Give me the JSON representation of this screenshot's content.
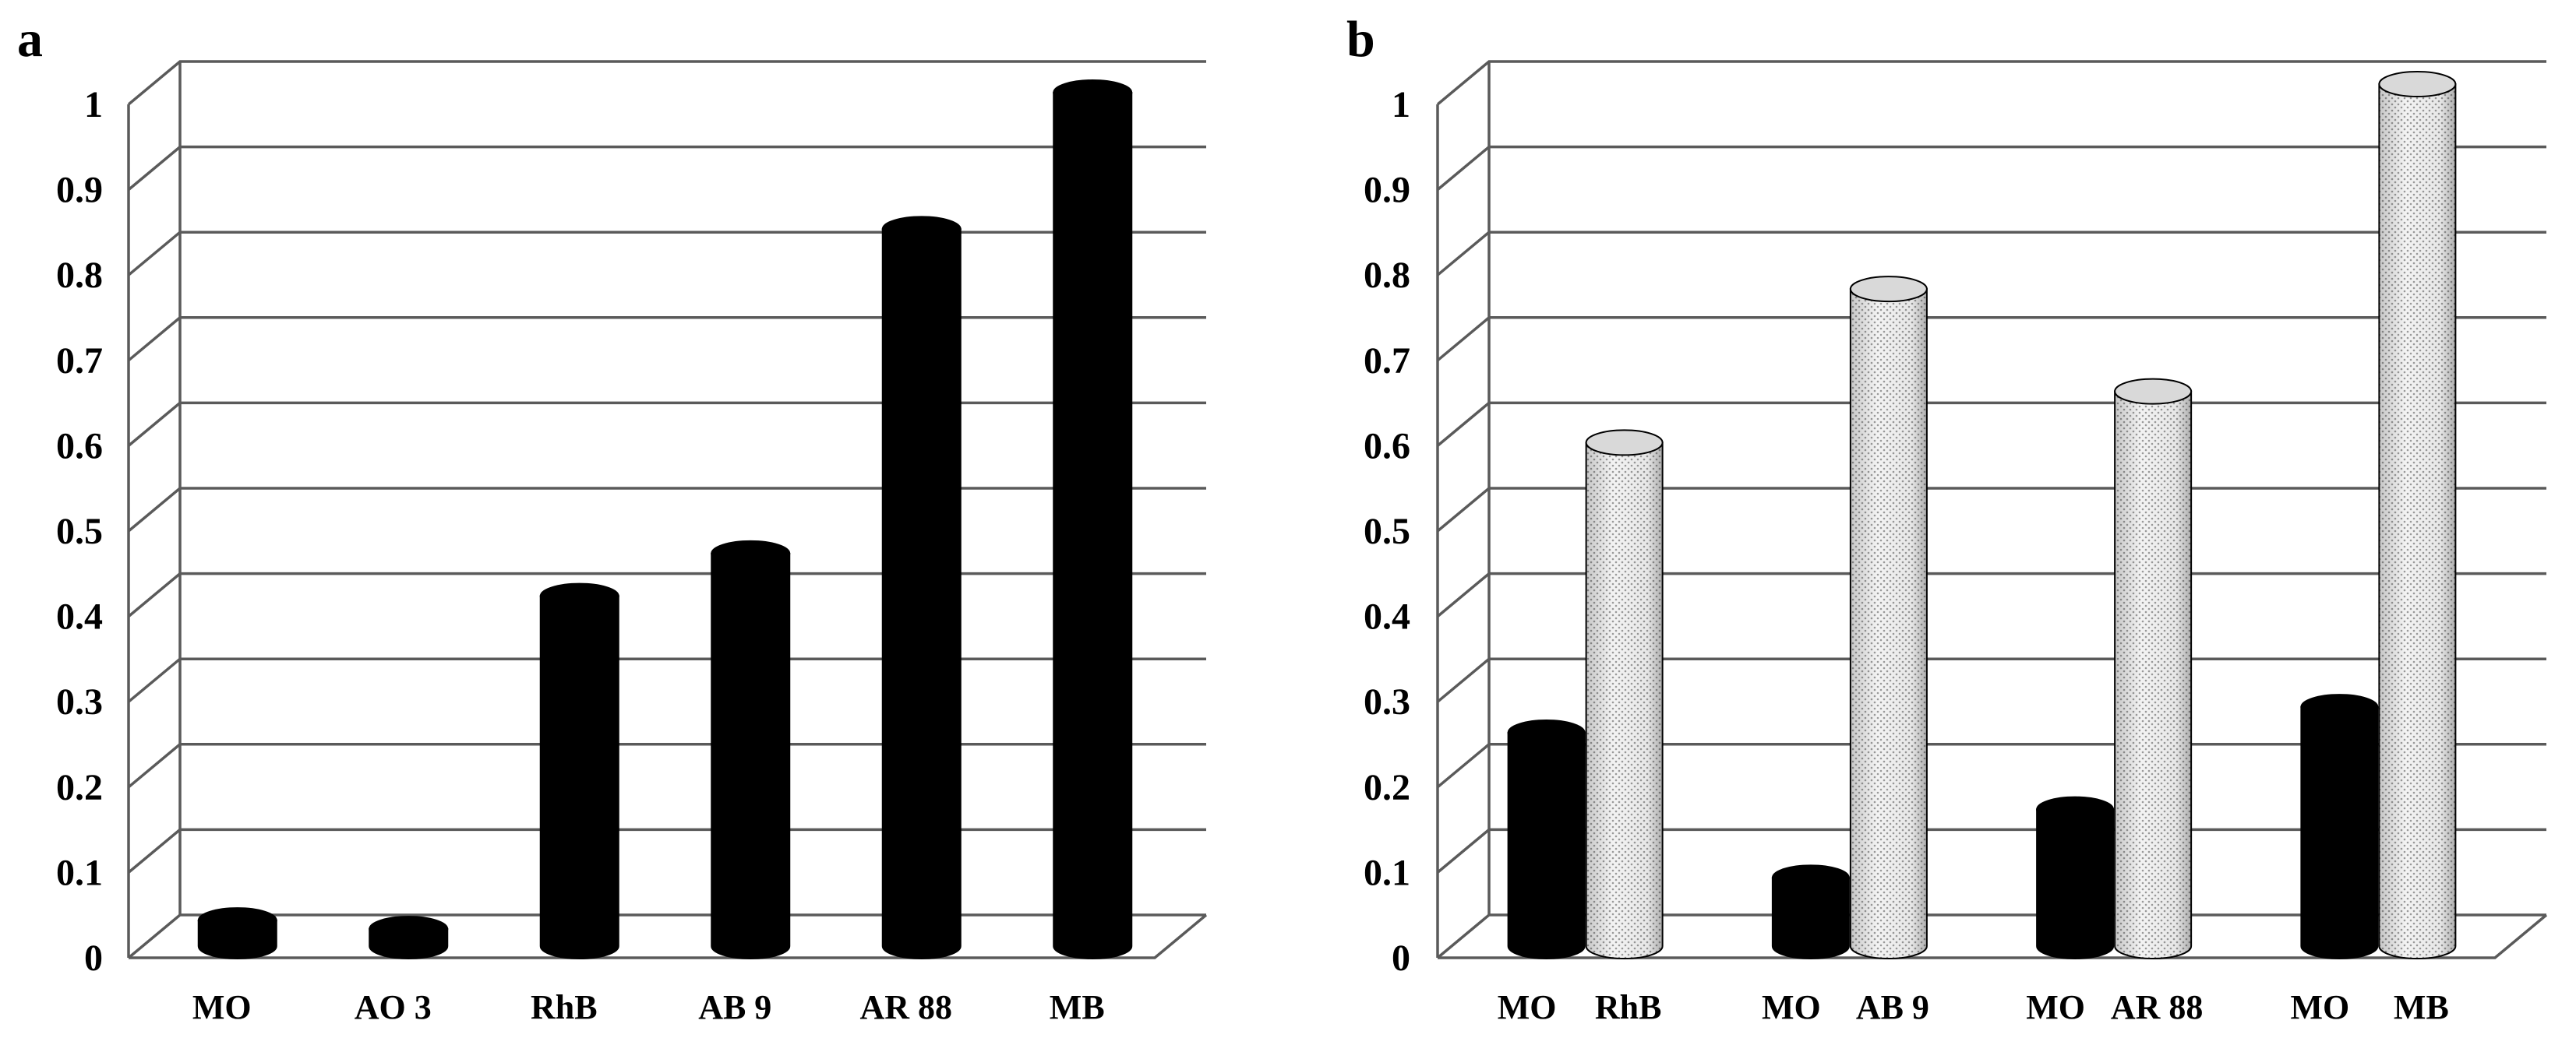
{
  "colors": {
    "series_dark": "#000000",
    "series_light": "#d9d9d9",
    "grid": "#5a5a5a",
    "background": "#ffffff"
  },
  "chart_data": [
    {
      "panel_label": "a",
      "type": "bar",
      "style": "3d-cylinder",
      "categories": [
        "MO",
        "AO 3",
        "RhB",
        "AB 9",
        "AR 88",
        "MB"
      ],
      "series": [
        {
          "values": [
            0.03,
            0.02,
            0.41,
            0.46,
            0.84,
            1.0
          ],
          "color": "#000000"
        }
      ],
      "yticks": [
        "0",
        "0.1",
        "0.2",
        "0.3",
        "0.4",
        "0.5",
        "0.6",
        "0.7",
        "0.8",
        "0.9",
        "1"
      ],
      "ylim": [
        0,
        1
      ],
      "grid": true,
      "legend": "none"
    },
    {
      "panel_label": "b",
      "type": "bar",
      "style": "3d-cylinder",
      "groups": [
        {
          "labels": [
            "MO",
            "RhB"
          ],
          "values": [
            0.25,
            0.59
          ]
        },
        {
          "labels": [
            "MO",
            "AB 9"
          ],
          "values": [
            0.08,
            0.77
          ]
        },
        {
          "labels": [
            "MO",
            "AR 88"
          ],
          "values": [
            0.16,
            0.65
          ]
        },
        {
          "labels": [
            "MO",
            "MB"
          ],
          "values": [
            0.28,
            1.01
          ]
        }
      ],
      "series_colors": [
        "#000000",
        "#d9d9d9"
      ],
      "yticks": [
        "0",
        "0.1",
        "0.2",
        "0.3",
        "0.4",
        "0.5",
        "0.6",
        "0.7",
        "0.8",
        "0.9",
        "1"
      ],
      "ylim": [
        0,
        1
      ],
      "grid": true,
      "legend": "none"
    }
  ]
}
